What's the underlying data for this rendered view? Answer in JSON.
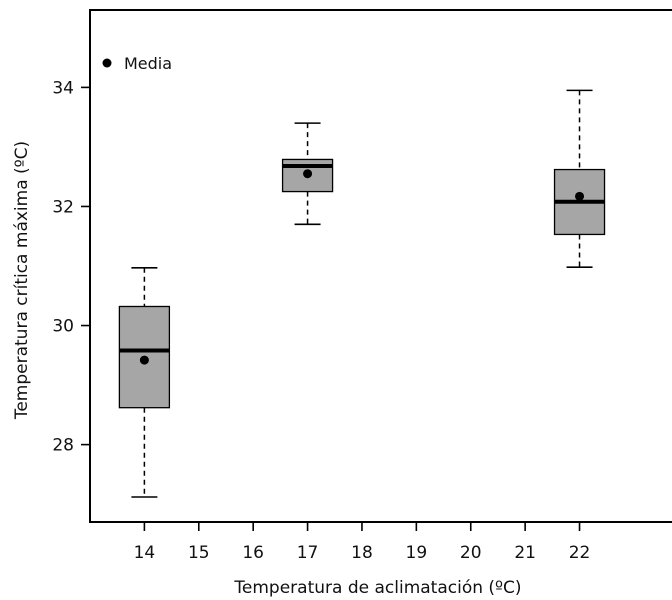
{
  "chart_data": {
    "type": "box",
    "xlabel": "Temperatura de aclimatación (ºC)",
    "ylabel": "Temperatura crítica máxima (ºC)",
    "xlim": [
      13,
      23.7
    ],
    "ylim": [
      26.7,
      35.3
    ],
    "x_ticks": [
      14,
      15,
      16,
      17,
      18,
      19,
      20,
      21,
      22
    ],
    "y_ticks": [
      28,
      30,
      32,
      34
    ],
    "legend": {
      "label": "Media",
      "marker": "filled-circle",
      "position": "top-left"
    },
    "box_fill": "#a6a6a6",
    "groups": [
      {
        "x": 14,
        "whisker_low": 27.12,
        "q1": 28.62,
        "median": 29.58,
        "q3": 30.32,
        "whisker_high": 30.97,
        "mean": 29.42
      },
      {
        "x": 17,
        "whisker_low": 31.7,
        "q1": 32.25,
        "median": 32.68,
        "q3": 32.79,
        "whisker_high": 33.4,
        "mean": 32.55
      },
      {
        "x": 22,
        "whisker_low": 30.98,
        "q1": 31.53,
        "median": 32.08,
        "q3": 32.62,
        "whisker_high": 33.95,
        "mean": 32.17
      }
    ]
  }
}
